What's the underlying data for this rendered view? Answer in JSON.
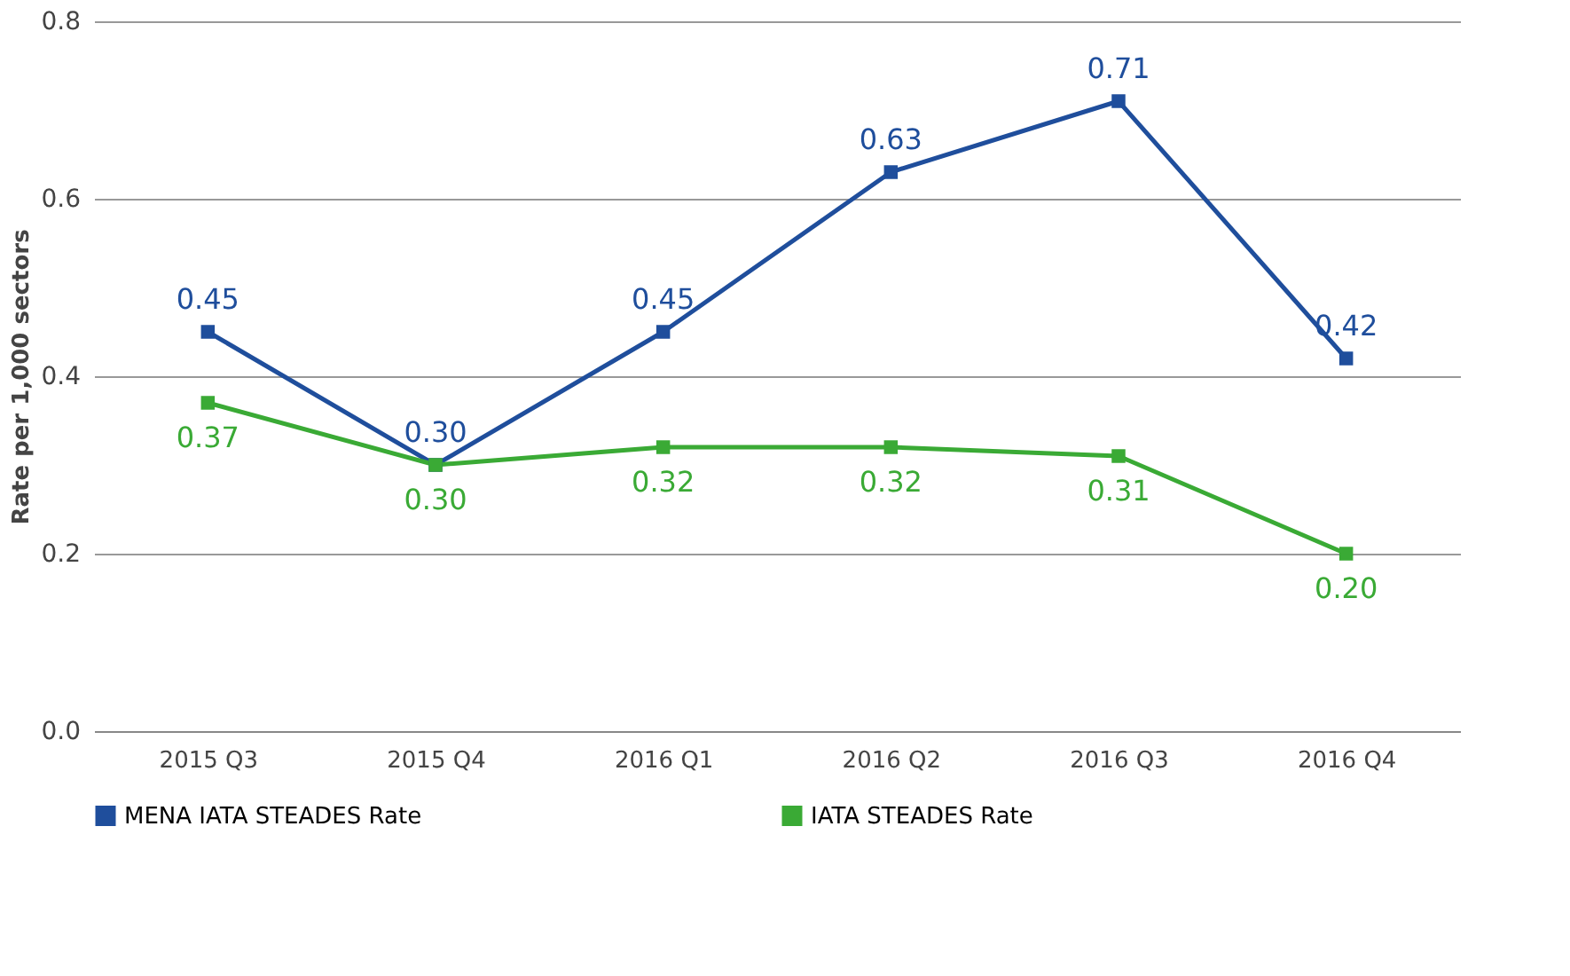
{
  "chart_data": {
    "type": "line",
    "ylabel": "Rate per 1,000 sectors",
    "categories": [
      "2015 Q3",
      "2015 Q4",
      "2016 Q1",
      "2016 Q2",
      "2016 Q3",
      "2016 Q4"
    ],
    "series": [
      {
        "name": "MENA IATA STEADES Rate",
        "color": "#1f4e9c",
        "values": [
          0.45,
          0.3,
          0.45,
          0.63,
          0.71,
          0.42
        ],
        "value_labels": [
          "0.45",
          "0.30",
          "0.45",
          "0.63",
          "0.71",
          "0.42"
        ]
      },
      {
        "name": "IATA STEADES Rate",
        "color": "#3aaa35",
        "values": [
          0.37,
          0.3,
          0.32,
          0.32,
          0.31,
          0.2
        ],
        "value_labels": [
          "0.37",
          "0.30",
          "0.32",
          "0.32",
          "0.31",
          "0.20"
        ]
      }
    ],
    "ylim": [
      0,
      0.8
    ],
    "yticks": [
      {
        "value": 0,
        "label": "0.0"
      },
      {
        "value": 0.2,
        "label": "0.2"
      },
      {
        "value": 0.4,
        "label": "0.4"
      },
      {
        "value": 0.6,
        "label": "0.6"
      },
      {
        "value": 0.8,
        "label": "0.8"
      }
    ],
    "grid": "y",
    "legend": "bottom",
    "marker": "square",
    "line_style": "solid"
  }
}
